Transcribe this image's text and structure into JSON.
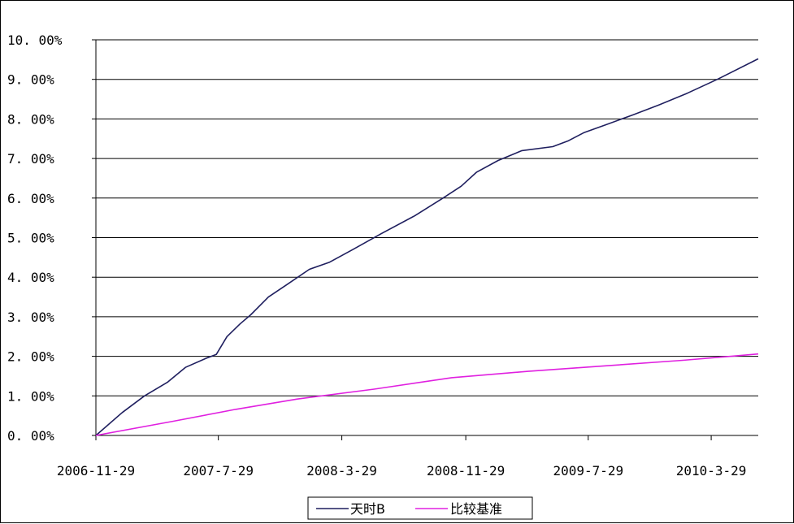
{
  "chart_data": {
    "type": "line",
    "title": "",
    "xlabel": "",
    "ylabel": "",
    "ylim": [
      0,
      10
    ],
    "y_ticks": [
      0,
      1,
      2,
      3,
      4,
      5,
      6,
      7,
      8,
      9,
      10
    ],
    "y_tick_labels": [
      "0. 00%",
      "1. 00%",
      "2. 00%",
      "3. 00%",
      "4. 00%",
      "5. 00%",
      "6. 00%",
      "7. 00%",
      "8. 00%",
      "9. 00%",
      "10. 00%"
    ],
    "x_tick_labels": [
      "2006-11-29",
      "2007-7-29",
      "2008-3-29",
      "2008-11-29",
      "2009-7-29",
      "2010-3-29"
    ],
    "x_tick_dates": [
      "2006-11-29",
      "2007-07-29",
      "2008-03-29",
      "2008-11-29",
      "2009-07-29",
      "2010-03-29"
    ],
    "x_range": [
      "2006-11-29",
      "2010-06-30"
    ],
    "grid": "horizontal",
    "legend_position": "bottom-center",
    "series": [
      {
        "name": "天时B",
        "color": "#1f1f5f",
        "points": [
          [
            "2006-11-29",
            0.0
          ],
          [
            "2007-01-20",
            0.58
          ],
          [
            "2007-03-05",
            1.0
          ],
          [
            "2007-04-20",
            1.35
          ],
          [
            "2007-05-25",
            1.72
          ],
          [
            "2007-07-05",
            1.95
          ],
          [
            "2007-07-25",
            2.05
          ],
          [
            "2007-08-15",
            2.5
          ],
          [
            "2007-09-10",
            2.82
          ],
          [
            "2007-10-01",
            3.05
          ],
          [
            "2007-11-05",
            3.5
          ],
          [
            "2007-12-10",
            3.8
          ],
          [
            "2008-01-25",
            4.2
          ],
          [
            "2008-03-05",
            4.38
          ],
          [
            "2008-04-20",
            4.7
          ],
          [
            "2008-06-15",
            5.1
          ],
          [
            "2008-08-20",
            5.55
          ],
          [
            "2008-10-15",
            6.0
          ],
          [
            "2008-11-20",
            6.3
          ],
          [
            "2008-12-20",
            6.65
          ],
          [
            "2009-02-01",
            6.95
          ],
          [
            "2009-03-20",
            7.2
          ],
          [
            "2009-05-20",
            7.3
          ],
          [
            "2009-06-20",
            7.45
          ],
          [
            "2009-07-20",
            7.65
          ],
          [
            "2009-09-01",
            7.85
          ],
          [
            "2009-10-25",
            8.1
          ],
          [
            "2009-12-15",
            8.35
          ],
          [
            "2010-02-10",
            8.65
          ],
          [
            "2010-04-10",
            9.0
          ],
          [
            "2010-06-30",
            9.52
          ]
        ]
      },
      {
        "name": "比较基准",
        "color": "#e020e0",
        "points": [
          [
            "2006-11-29",
            0.0
          ],
          [
            "2007-05-01",
            0.36
          ],
          [
            "2007-09-01",
            0.66
          ],
          [
            "2008-01-01",
            0.92
          ],
          [
            "2008-06-01",
            1.17
          ],
          [
            "2008-11-01",
            1.46
          ],
          [
            "2009-04-01",
            1.62
          ],
          [
            "2009-09-01",
            1.76
          ],
          [
            "2010-02-01",
            1.9
          ],
          [
            "2010-06-30",
            2.06
          ]
        ]
      }
    ]
  }
}
